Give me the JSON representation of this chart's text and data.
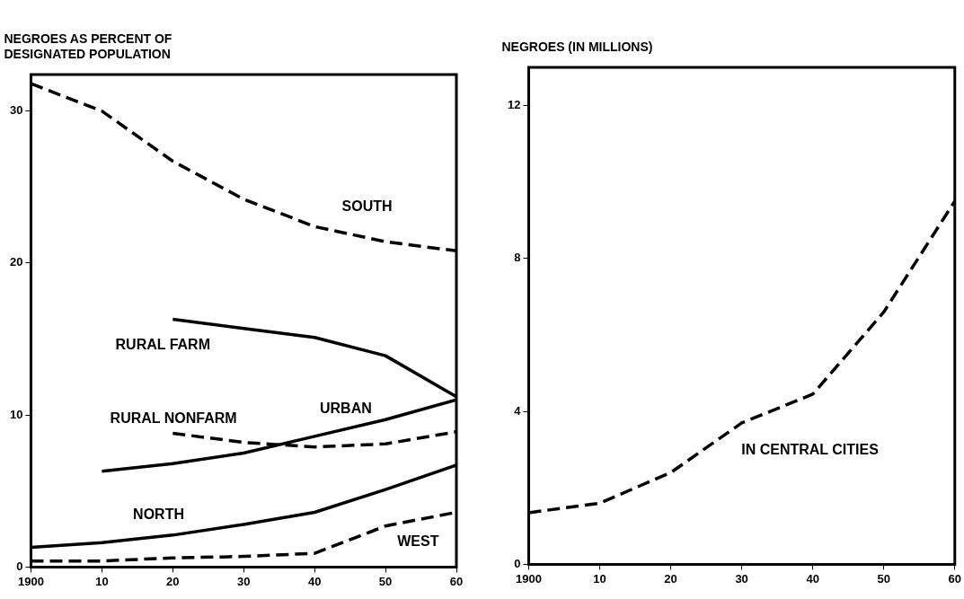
{
  "chart_data": [
    {
      "type": "line",
      "ylabel": "NEGROES AS PERCENT OF DESIGNATED POPULATION",
      "x": [
        1900,
        1910,
        1920,
        1930,
        1940,
        1950,
        1960
      ],
      "xlim": [
        1900,
        1960
      ],
      "xticks": [
        1900,
        {
          "value": 1910,
          "label": "10"
        },
        {
          "value": 1920,
          "label": "20"
        },
        {
          "value": 1930,
          "label": "30"
        },
        {
          "value": 1940,
          "label": "40"
        },
        {
          "value": 1950,
          "label": "50"
        },
        {
          "value": 1960,
          "label": "60"
        }
      ],
      "ylim": [
        0,
        32.4
      ],
      "yticks": [
        0,
        10,
        20,
        30
      ],
      "grid": false,
      "legend": false,
      "marker": "none",
      "series": [
        {
          "name": "SOUTH",
          "color": "#000000",
          "line_style": "dashed",
          "values": [
            31.8,
            30.0,
            26.7,
            24.2,
            22.4,
            21.4,
            20.8
          ]
        },
        {
          "name": "RURAL FARM",
          "color": "#000000",
          "line_style": "solid",
          "values": [
            null,
            null,
            16.3,
            15.7,
            15.1,
            13.9,
            11.2
          ]
        },
        {
          "name": "URBAN",
          "color": "#000000",
          "line_style": "solid",
          "values": [
            null,
            6.3,
            6.8,
            7.5,
            8.6,
            9.7,
            11.0
          ]
        },
        {
          "name": "RURAL NONFARM",
          "color": "#000000",
          "line_style": "dashed",
          "values": [
            null,
            null,
            8.8,
            8.2,
            7.9,
            8.1,
            8.9
          ]
        },
        {
          "name": "NORTH",
          "color": "#000000",
          "line_style": "solid",
          "values": [
            1.3,
            1.6,
            2.1,
            2.8,
            3.6,
            5.1,
            6.7
          ]
        },
        {
          "name": "WEST",
          "color": "#000000",
          "line_style": "dashed",
          "values": [
            0.4,
            0.4,
            0.6,
            0.7,
            0.9,
            2.7,
            3.6
          ]
        }
      ]
    },
    {
      "type": "line",
      "ylabel": "NEGROES (IN MILLIONS)",
      "x": [
        1900,
        1910,
        1920,
        1930,
        1940,
        1950,
        1960
      ],
      "xlim": [
        1900,
        1960
      ],
      "xticks": [
        1900,
        {
          "value": 1910,
          "label": "10"
        },
        {
          "value": 1920,
          "label": "20"
        },
        {
          "value": 1930,
          "label": "30"
        },
        {
          "value": 1940,
          "label": "40"
        },
        {
          "value": 1950,
          "label": "50"
        },
        {
          "value": 1960,
          "label": "60"
        }
      ],
      "ylim": [
        0,
        13
      ],
      "yticks": [
        0,
        4,
        8,
        12
      ],
      "grid": false,
      "legend": false,
      "marker": "none",
      "series": [
        {
          "name": "IN CENTRAL CITIES",
          "color": "#000000",
          "line_style": "dashed",
          "values": [
            1.35,
            1.6,
            2.4,
            3.7,
            4.45,
            6.6,
            9.5
          ]
        }
      ]
    }
  ]
}
